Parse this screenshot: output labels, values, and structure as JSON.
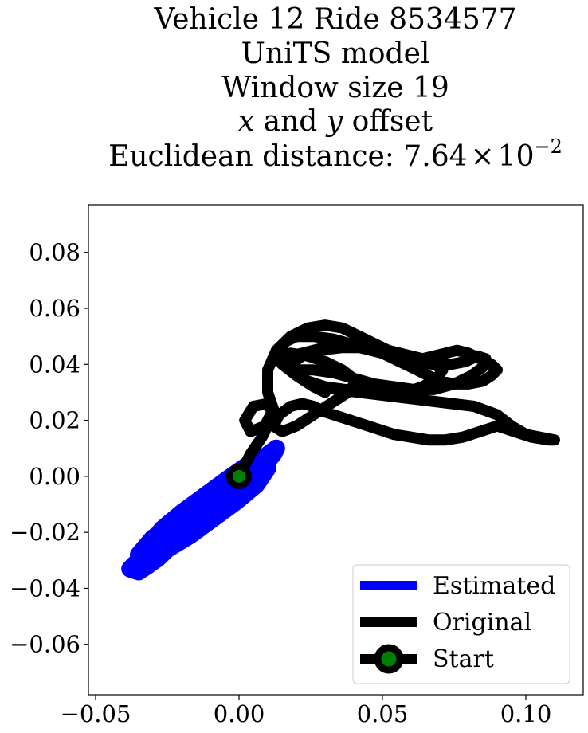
{
  "chart_data": {
    "type": "line",
    "title_lines": [
      "Vehicle 12 Ride 8534577",
      "UniTS model",
      "Window size 19",
      "x and y offset"
    ],
    "title_math": {
      "var_x": "x",
      "and": " and ",
      "var_y": "y",
      "offset": " offset"
    },
    "title_distance": {
      "prefix": "Euclidean distance: ",
      "mantissa": "7.64",
      "times": "×",
      "base": "10",
      "exponent": "−2"
    },
    "xlim": [
      -0.0525,
      0.12
    ],
    "ylim": [
      -0.078,
      0.097
    ],
    "xticks": [
      -0.05,
      0.0,
      0.05,
      0.1
    ],
    "xtick_labels": [
      "−0.05",
      "0.00",
      "0.05",
      "0.10"
    ],
    "yticks": [
      0.08,
      0.06,
      0.04,
      0.02,
      0.0,
      -0.02,
      -0.04,
      -0.06
    ],
    "ytick_labels": [
      "0.08",
      "0.06",
      "0.04",
      "0.02",
      "0.00",
      "−0.02",
      "−0.04",
      "−0.06"
    ],
    "series": [
      {
        "name": "Estimated",
        "color": "#0000ff",
        "x": [
          0,
          -0.004,
          -0.008,
          -0.012,
          -0.016,
          -0.02,
          -0.024,
          -0.028,
          -0.032,
          -0.035,
          -0.038,
          -0.036,
          -0.03,
          -0.022,
          -0.014,
          -0.006,
          0.002,
          0.008,
          0.012,
          0.013,
          0.009,
          0.002,
          -0.006,
          -0.014,
          -0.022,
          -0.03,
          -0.035,
          -0.032,
          -0.025,
          -0.017,
          -0.009,
          -0.001,
          0.006,
          0.01,
          0.008,
          0.003,
          -0.004,
          -0.012,
          -0.02,
          -0.027,
          -0.031,
          -0.027,
          -0.02,
          -0.012,
          -0.004,
          0.003,
          0.0
        ],
        "y": [
          0,
          -0.004,
          -0.008,
          -0.012,
          -0.017,
          -0.021,
          -0.025,
          -0.029,
          -0.032,
          -0.034,
          -0.033,
          -0.031,
          -0.027,
          -0.022,
          -0.017,
          -0.011,
          -0.004,
          0.003,
          0.008,
          0.01,
          0.007,
          0.002,
          -0.004,
          -0.01,
          -0.016,
          -0.022,
          -0.028,
          -0.03,
          -0.026,
          -0.021,
          -0.015,
          -0.009,
          -0.003,
          0.003,
          0.006,
          0.004,
          -0.001,
          -0.007,
          -0.013,
          -0.019,
          -0.025,
          -0.026,
          -0.022,
          -0.016,
          -0.01,
          -0.004,
          0.0
        ]
      },
      {
        "name": "Original",
        "color": "#000000",
        "x": [
          0,
          0.004,
          0.008,
          0.012,
          0.01,
          0.005,
          0.002,
          0.004,
          0.009,
          0.012,
          0.01,
          0.01,
          0.013,
          0.018,
          0.024,
          0.03,
          0.036,
          0.04,
          0.044,
          0.048,
          0.052,
          0.056,
          0.06,
          0.064,
          0.068,
          0.072,
          0.076,
          0.08,
          0.084,
          0.088,
          0.09,
          0.088,
          0.085,
          0.08,
          0.075,
          0.07,
          0.066,
          0.062,
          0.058,
          0.054,
          0.05,
          0.046,
          0.042,
          0.038,
          0.034,
          0.03,
          0.026,
          0.022,
          0.018,
          0.016,
          0.015,
          0.016,
          0.02,
          0.026,
          0.033,
          0.04,
          0.047,
          0.054,
          0.061,
          0.068,
          0.074,
          0.079,
          0.083,
          0.086,
          0.085,
          0.081,
          0.075,
          0.068,
          0.061,
          0.054,
          0.047,
          0.04,
          0.033,
          0.026,
          0.021,
          0.02,
          0.024,
          0.03,
          0.037,
          0.044,
          0.051,
          0.058,
          0.064,
          0.069,
          0.071,
          0.067,
          0.06,
          0.052,
          0.044,
          0.036,
          0.028,
          0.022,
          0.018,
          0.02,
          0.026,
          0.034,
          0.042,
          0.05,
          0.058,
          0.066,
          0.074,
          0.082,
          0.09,
          0.095,
          0.1,
          0.105,
          0.11,
          0.108,
          0.102,
          0.096,
          0.09,
          0.084,
          0.078,
          0.072,
          0.066,
          0.06,
          0.054,
          0.048,
          0.042,
          0.036,
          0.03,
          0.026,
          0.022,
          0.018,
          0.014,
          0.012,
          0.015,
          0.02,
          0.026,
          0.032,
          0.038,
          0.041,
          0.036,
          0.03,
          0.024,
          0.018,
          0.014,
          0.015,
          0.02,
          0.026,
          0.03
        ],
        "y": [
          0,
          0.008,
          0.014,
          0.022,
          0.026,
          0.025,
          0.02,
          0.016,
          0.018,
          0.024,
          0.03,
          0.038,
          0.045,
          0.05,
          0.053,
          0.054,
          0.053,
          0.051,
          0.049,
          0.047,
          0.045,
          0.044,
          0.043,
          0.042,
          0.043,
          0.044,
          0.045,
          0.044,
          0.042,
          0.04,
          0.038,
          0.036,
          0.034,
          0.033,
          0.033,
          0.034,
          0.036,
          0.038,
          0.04,
          0.042,
          0.044,
          0.045,
          0.046,
          0.047,
          0.047,
          0.046,
          0.045,
          0.044,
          0.043,
          0.044,
          0.046,
          0.048,
          0.05,
          0.05,
          0.049,
          0.047,
          0.045,
          0.043,
          0.041,
          0.04,
          0.04,
          0.041,
          0.043,
          0.042,
          0.039,
          0.036,
          0.033,
          0.031,
          0.031,
          0.032,
          0.033,
          0.035,
          0.037,
          0.038,
          0.038,
          0.036,
          0.034,
          0.032,
          0.031,
          0.03,
          0.029,
          0.03,
          0.032,
          0.035,
          0.038,
          0.041,
          0.043,
          0.045,
          0.046,
          0.046,
          0.045,
          0.043,
          0.04,
          0.036,
          0.033,
          0.031,
          0.03,
          0.029,
          0.028,
          0.027,
          0.026,
          0.025,
          0.022,
          0.018,
          0.015,
          0.014,
          0.013,
          0.013,
          0.014,
          0.016,
          0.018,
          0.016,
          0.014,
          0.013,
          0.013,
          0.014,
          0.015,
          0.017,
          0.019,
          0.021,
          0.023,
          0.025,
          0.026,
          0.025,
          0.022,
          0.018,
          0.016,
          0.018,
          0.022,
          0.026,
          0.03,
          0.034,
          0.038,
          0.041,
          0.043,
          0.044,
          0.043,
          0.04,
          0.036,
          0.032,
          0.03
        ]
      }
    ],
    "start": {
      "x": 0.0,
      "y": 0.0,
      "marker_color": "#008000",
      "edge_color": "#000000"
    },
    "legend": {
      "position": "lower-right",
      "entries": [
        {
          "label": "Estimated",
          "color": "#0000ff",
          "kind": "line"
        },
        {
          "label": "Original",
          "color": "#000000",
          "kind": "line"
        },
        {
          "label": "Start",
          "color": "#000000",
          "kind": "marker",
          "marker_color": "#008000"
        }
      ]
    }
  }
}
